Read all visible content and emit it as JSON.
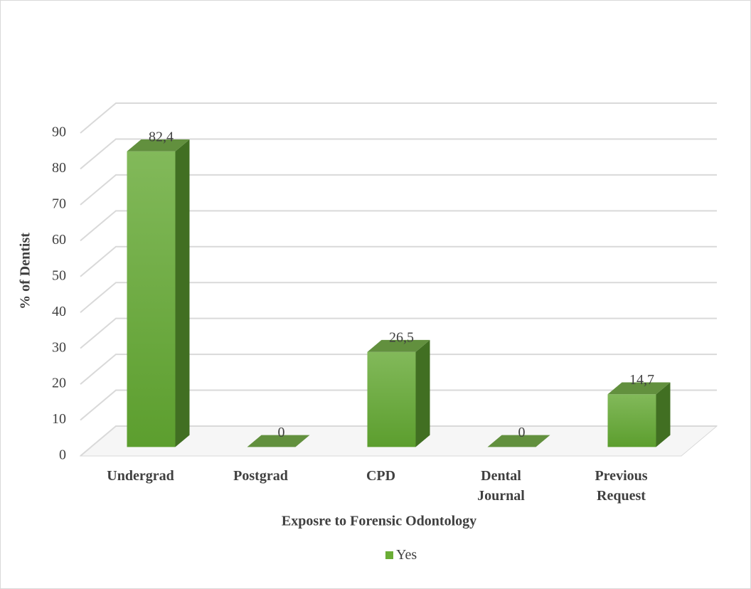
{
  "chart_data": {
    "type": "bar3d",
    "x_label": "Exposre to Forensic Odontology",
    "y_label": "% of Dentist",
    "categories": [
      "Undergrad",
      "Postgrad",
      "CPD",
      "Dental Journal",
      "Previous Request"
    ],
    "series": [
      {
        "name": "Yes",
        "color": "#6aad35",
        "values": [
          82.4,
          0,
          26.5,
          0,
          14.7
        ],
        "value_labels": [
          "82,4",
          "0",
          "26,5",
          "0",
          "14,7"
        ]
      }
    ],
    "ylim": [
      0,
      90
    ],
    "yticks": [
      0,
      10,
      20,
      30,
      40,
      50,
      60,
      70,
      80,
      90
    ],
    "grid": true
  }
}
